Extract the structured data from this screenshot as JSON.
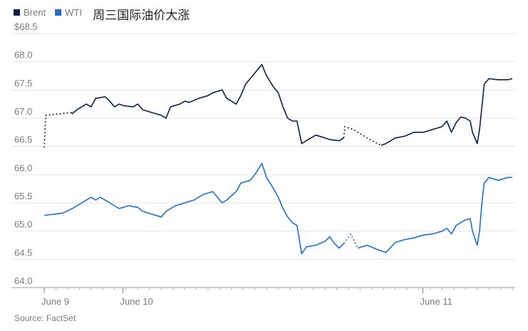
{
  "chart_data": {
    "type": "line",
    "title": "周三国际油价大涨",
    "source": "Source: FactSet",
    "legend_position": "top-left",
    "grid": true,
    "y_ticks": [
      "$68.5",
      "68.0",
      "67.5",
      "67.0",
      "66.5",
      "66.0",
      "65.5",
      "65.0",
      "64.5",
      "64.0"
    ],
    "ylim": [
      64.0,
      68.5
    ],
    "x_ticks": [
      {
        "label": "June 9",
        "pos": 0.0
      },
      {
        "label": "June 10",
        "pos": 0.168
      },
      {
        "label": "June 11",
        "pos": 0.809
      }
    ],
    "xlim": [
      0,
      1
    ],
    "series": [
      {
        "name": "Brent",
        "color": "#0b2145",
        "dotted_segments": [
          [
            0.0,
            0.058
          ],
          [
            0.64,
            0.72
          ]
        ],
        "points": [
          [
            0.0,
            66.48
          ],
          [
            0.003,
            67.05
          ],
          [
            0.058,
            67.1
          ],
          [
            0.06,
            67.08
          ],
          [
            0.07,
            67.15
          ],
          [
            0.09,
            67.25
          ],
          [
            0.1,
            67.2
          ],
          [
            0.11,
            67.35
          ],
          [
            0.13,
            67.38
          ],
          [
            0.14,
            67.3
          ],
          [
            0.15,
            67.2
          ],
          [
            0.16,
            67.25
          ],
          [
            0.17,
            67.22
          ],
          [
            0.19,
            67.2
          ],
          [
            0.2,
            67.25
          ],
          [
            0.21,
            67.15
          ],
          [
            0.23,
            67.1
          ],
          [
            0.25,
            67.05
          ],
          [
            0.26,
            67.0
          ],
          [
            0.27,
            67.2
          ],
          [
            0.29,
            67.25
          ],
          [
            0.3,
            67.3
          ],
          [
            0.31,
            67.28
          ],
          [
            0.33,
            67.35
          ],
          [
            0.35,
            67.4
          ],
          [
            0.36,
            67.45
          ],
          [
            0.38,
            67.5
          ],
          [
            0.39,
            67.35
          ],
          [
            0.41,
            67.25
          ],
          [
            0.42,
            67.4
          ],
          [
            0.43,
            67.6
          ],
          [
            0.44,
            67.7
          ],
          [
            0.45,
            67.8
          ],
          [
            0.465,
            67.95
          ],
          [
            0.475,
            67.75
          ],
          [
            0.49,
            67.55
          ],
          [
            0.5,
            67.45
          ],
          [
            0.51,
            67.2
          ],
          [
            0.52,
            67.0
          ],
          [
            0.53,
            66.95
          ],
          [
            0.54,
            66.95
          ],
          [
            0.55,
            66.55
          ],
          [
            0.56,
            66.6
          ],
          [
            0.58,
            66.7
          ],
          [
            0.6,
            66.65
          ],
          [
            0.61,
            66.62
          ],
          [
            0.63,
            66.6
          ],
          [
            0.64,
            66.65
          ],
          [
            0.642,
            66.85
          ],
          [
            0.66,
            66.8
          ],
          [
            0.7,
            66.6
          ],
          [
            0.72,
            66.52
          ],
          [
            0.73,
            66.55
          ],
          [
            0.75,
            66.65
          ],
          [
            0.77,
            66.68
          ],
          [
            0.79,
            66.75
          ],
          [
            0.81,
            66.75
          ],
          [
            0.83,
            66.8
          ],
          [
            0.85,
            66.85
          ],
          [
            0.86,
            66.95
          ],
          [
            0.87,
            66.75
          ],
          [
            0.88,
            66.92
          ],
          [
            0.89,
            67.02
          ],
          [
            0.9,
            67.0
          ],
          [
            0.91,
            66.95
          ],
          [
            0.915,
            66.75
          ],
          [
            0.925,
            66.55
          ],
          [
            0.93,
            66.8
          ],
          [
            0.935,
            67.2
          ],
          [
            0.94,
            67.6
          ],
          [
            0.95,
            67.7
          ],
          [
            0.97,
            67.68
          ],
          [
            0.99,
            67.68
          ],
          [
            1.0,
            67.7
          ]
        ]
      },
      {
        "name": "WTI",
        "color": "#1f6ed4",
        "dotted_segments": [
          [
            0.64,
            0.67
          ]
        ],
        "points": [
          [
            0.0,
            65.28
          ],
          [
            0.02,
            65.3
          ],
          [
            0.04,
            65.32
          ],
          [
            0.06,
            65.4
          ],
          [
            0.07,
            65.45
          ],
          [
            0.08,
            65.5
          ],
          [
            0.1,
            65.6
          ],
          [
            0.11,
            65.55
          ],
          [
            0.12,
            65.6
          ],
          [
            0.14,
            65.5
          ],
          [
            0.15,
            65.45
          ],
          [
            0.16,
            65.4
          ],
          [
            0.18,
            65.45
          ],
          [
            0.2,
            65.42
          ],
          [
            0.21,
            65.35
          ],
          [
            0.23,
            65.3
          ],
          [
            0.25,
            65.25
          ],
          [
            0.26,
            65.35
          ],
          [
            0.28,
            65.45
          ],
          [
            0.3,
            65.5
          ],
          [
            0.32,
            65.55
          ],
          [
            0.34,
            65.65
          ],
          [
            0.36,
            65.7
          ],
          [
            0.37,
            65.6
          ],
          [
            0.38,
            65.5
          ],
          [
            0.39,
            65.55
          ],
          [
            0.41,
            65.7
          ],
          [
            0.42,
            65.85
          ],
          [
            0.44,
            65.9
          ],
          [
            0.45,
            66.0
          ],
          [
            0.465,
            66.2
          ],
          [
            0.475,
            65.95
          ],
          [
            0.49,
            65.75
          ],
          [
            0.5,
            65.6
          ],
          [
            0.51,
            65.4
          ],
          [
            0.52,
            65.25
          ],
          [
            0.53,
            65.15
          ],
          [
            0.54,
            65.1
          ],
          [
            0.55,
            64.6
          ],
          [
            0.56,
            64.72
          ],
          [
            0.58,
            64.75
          ],
          [
            0.6,
            64.82
          ],
          [
            0.61,
            64.9
          ],
          [
            0.62,
            64.78
          ],
          [
            0.63,
            64.7
          ],
          [
            0.64,
            64.78
          ],
          [
            0.655,
            64.95
          ],
          [
            0.67,
            64.7
          ],
          [
            0.69,
            64.75
          ],
          [
            0.71,
            64.68
          ],
          [
            0.73,
            64.62
          ],
          [
            0.75,
            64.8
          ],
          [
            0.77,
            64.85
          ],
          [
            0.79,
            64.88
          ],
          [
            0.81,
            64.93
          ],
          [
            0.83,
            64.95
          ],
          [
            0.85,
            65.0
          ],
          [
            0.86,
            65.05
          ],
          [
            0.87,
            64.95
          ],
          [
            0.88,
            65.1
          ],
          [
            0.89,
            65.15
          ],
          [
            0.9,
            65.2
          ],
          [
            0.91,
            65.22
          ],
          [
            0.915,
            65.0
          ],
          [
            0.925,
            64.75
          ],
          [
            0.93,
            65.0
          ],
          [
            0.935,
            65.5
          ],
          [
            0.94,
            65.85
          ],
          [
            0.95,
            65.95
          ],
          [
            0.97,
            65.9
          ],
          [
            0.99,
            65.95
          ],
          [
            1.0,
            65.95
          ]
        ]
      }
    ]
  },
  "legend": {
    "brent_label": "Brent",
    "wti_label": "WTI"
  }
}
